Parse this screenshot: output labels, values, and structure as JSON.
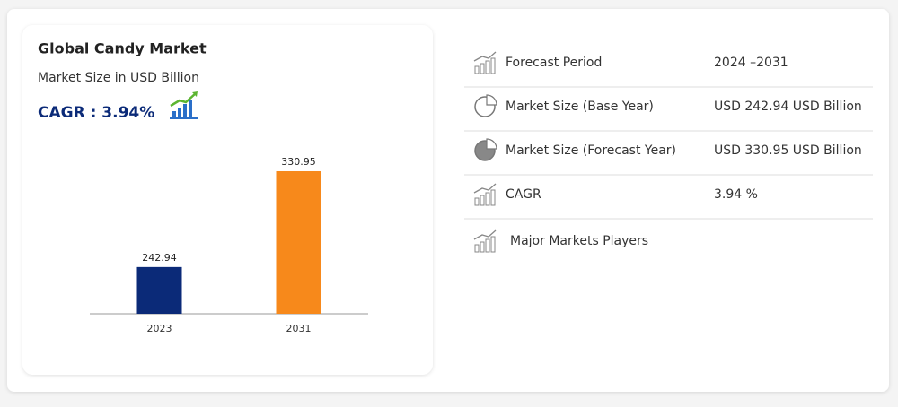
{
  "chart_data": {
    "type": "bar",
    "title": "Global Candy Market",
    "subtitle": "Market Size in USD Billion",
    "annotation": "CAGR : 3.94%",
    "categories": [
      "2023",
      "2031"
    ],
    "values": [
      242.94,
      330.95
    ],
    "colors": [
      "#0b2a78",
      "#f7891b"
    ],
    "ylim": [
      200,
      340
    ]
  },
  "details": [
    {
      "label": "Forecast Period",
      "value": "2024 –2031"
    },
    {
      "label": "Market Size (Base Year)",
      "value": "USD 242.94 USD Billion"
    },
    {
      "label": "Market Size (Forecast Year)",
      "value": "USD 330.95 USD Billion"
    },
    {
      "label": "CAGR",
      "value": "3.94 %"
    },
    {
      "label": "Major Markets Players"
    }
  ]
}
